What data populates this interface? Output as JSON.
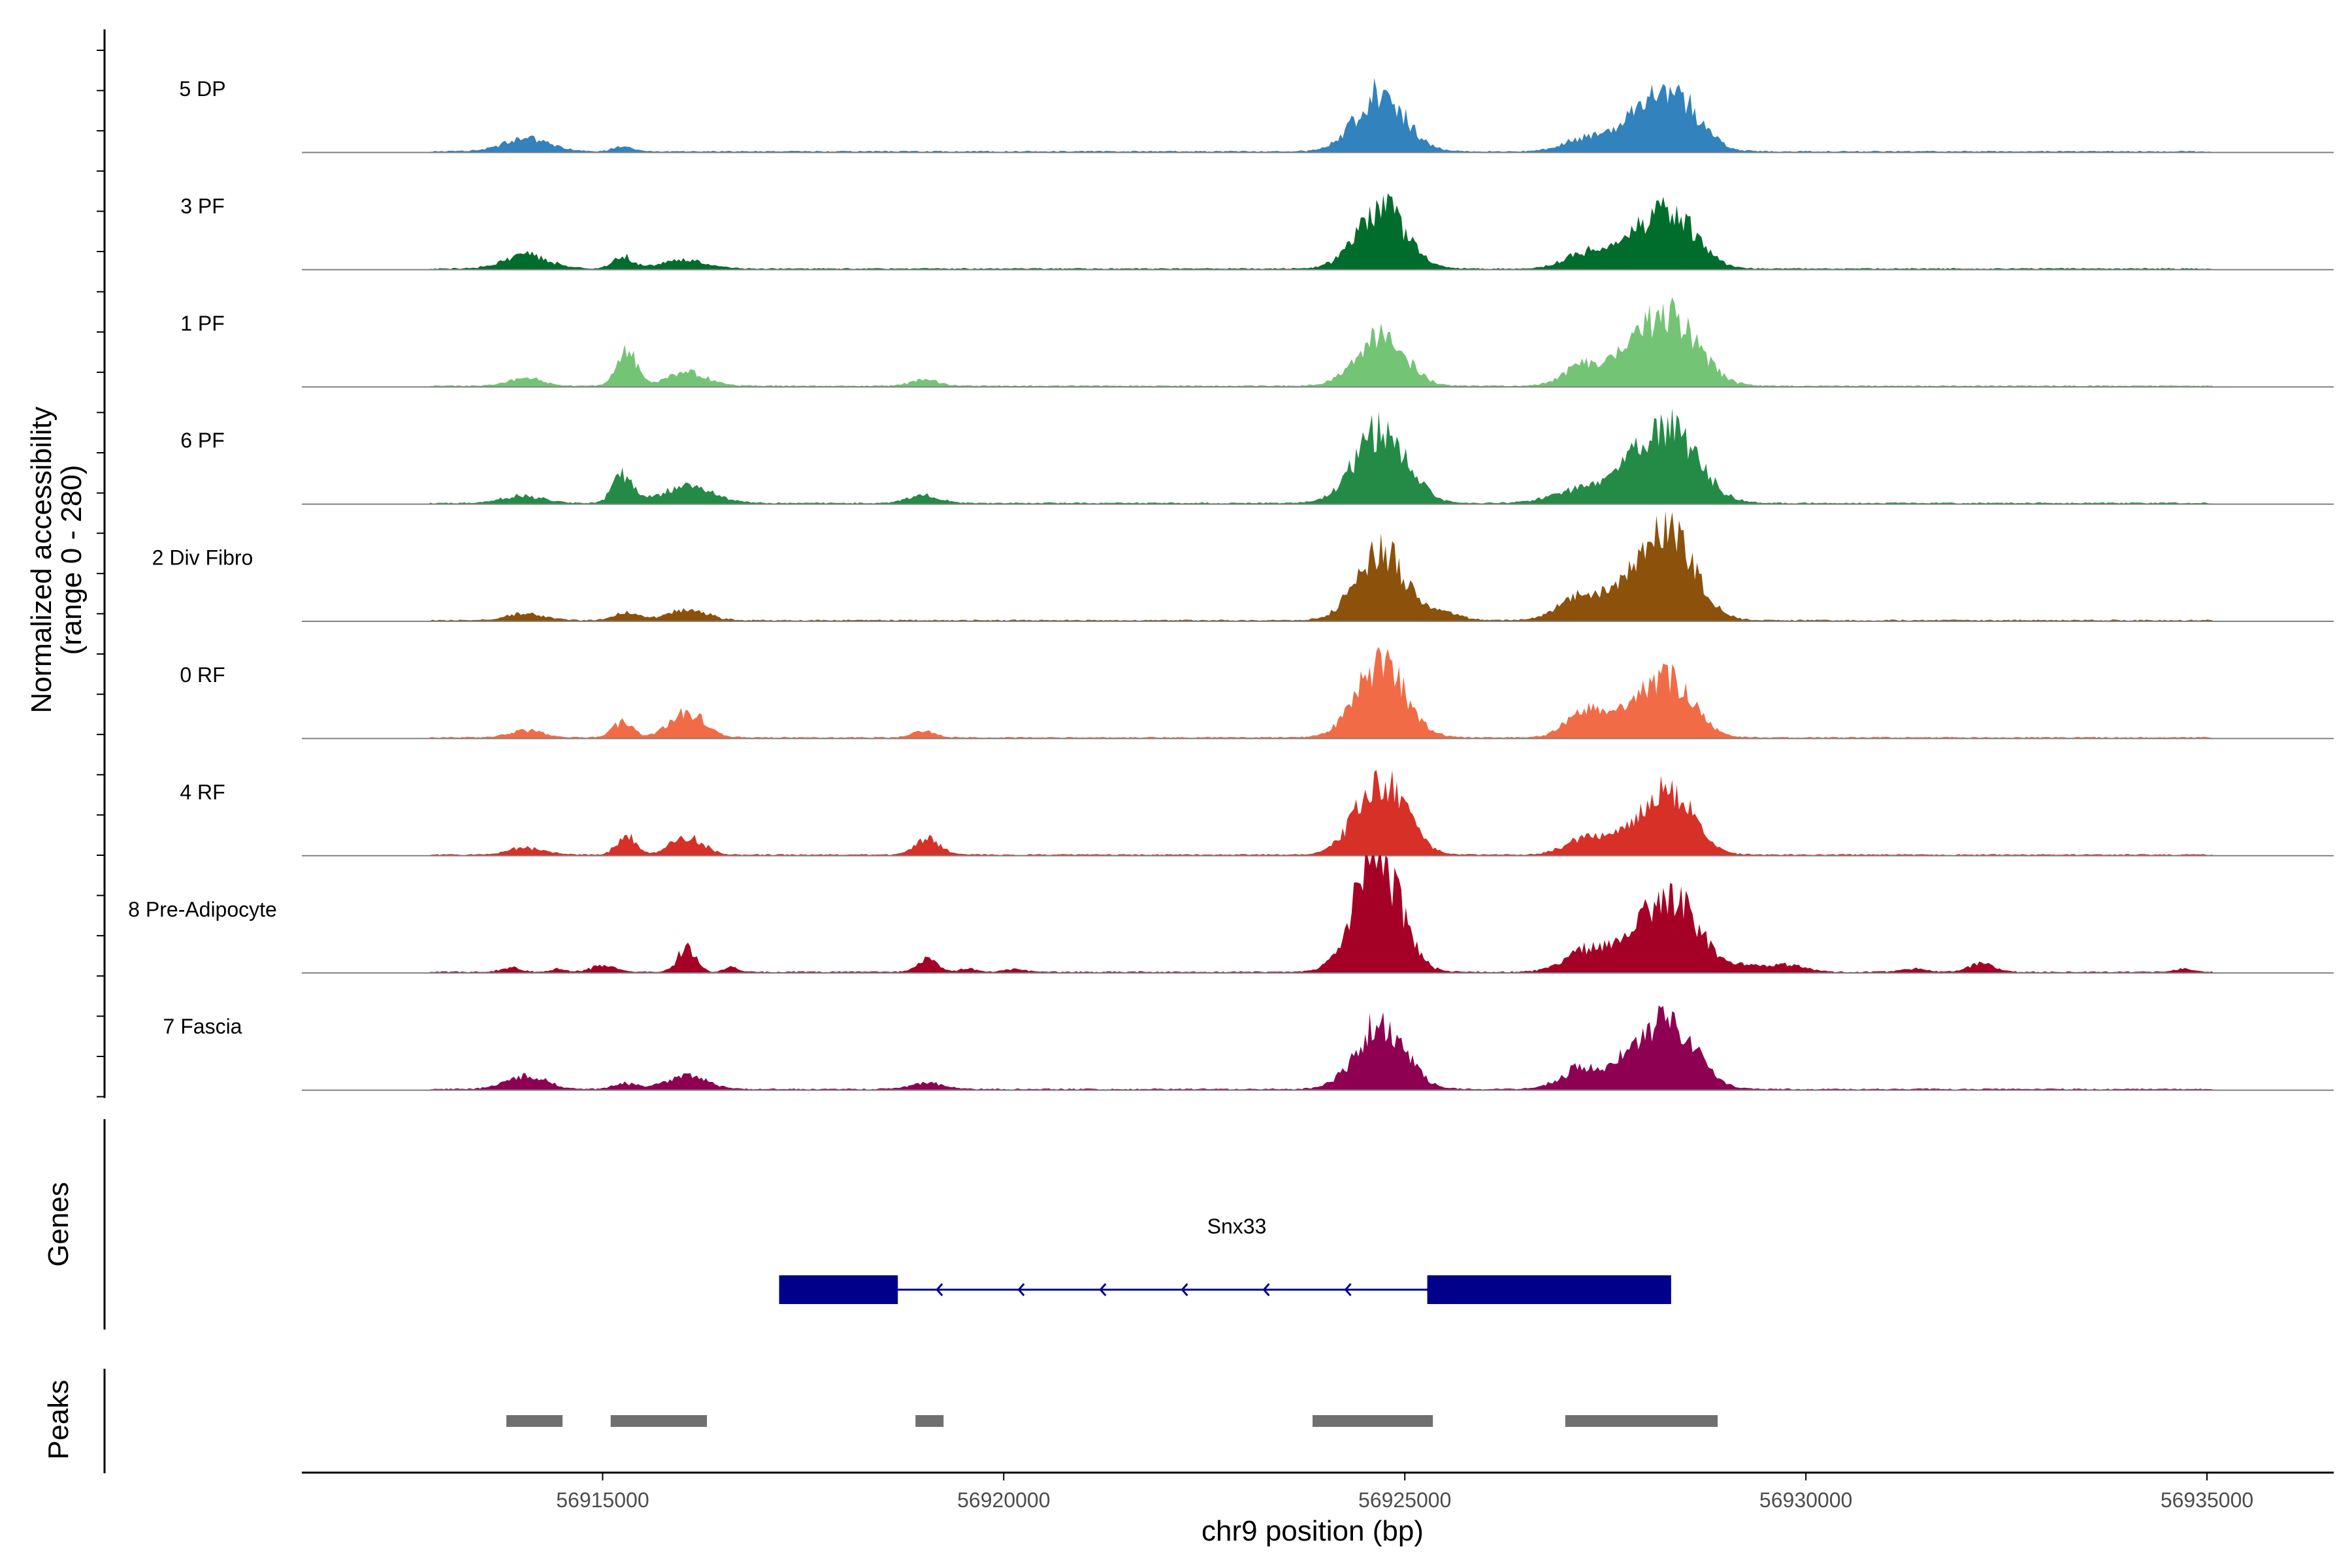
{
  "chart_data": {
    "type": "area",
    "title": "",
    "xlabel": "chr9 position (bp)",
    "ylabel": "Normalized accessibility\n(range 0 - 280)",
    "ylim": [
      0,
      280
    ],
    "xlim": [
      56911250,
      56936580
    ],
    "x_ticks": [
      56915000,
      56920000,
      56925000,
      56930000,
      56935000
    ],
    "x_tick_labels": [
      "56915000",
      "56920000",
      "56925000",
      "56930000",
      "56935000"
    ],
    "tracks": [
      {
        "name": "5 DP",
        "color": "#3182BD",
        "peaks": [
          [
            56914050,
            45,
            280
          ],
          [
            56915250,
            18,
            120
          ],
          [
            56924700,
            200,
            300
          ],
          [
            56927300,
            50,
            280
          ],
          [
            56927850,
            45,
            220
          ],
          [
            56928300,
            210,
            330
          ]
        ]
      },
      {
        "name": "3 PF",
        "color": "#006D2C",
        "peaks": [
          [
            56914050,
            45,
            280
          ],
          [
            56915250,
            40,
            120
          ],
          [
            56916000,
            30,
            280
          ],
          [
            56924700,
            210,
            300
          ],
          [
            56927300,
            60,
            280
          ],
          [
            56927800,
            45,
            200
          ],
          [
            56928300,
            200,
            320
          ]
        ]
      },
      {
        "name": "1 PF",
        "color": "#74C476",
        "peaks": [
          [
            56914050,
            25,
            220
          ],
          [
            56915300,
            120,
            120
          ],
          [
            56916050,
            45,
            250
          ],
          [
            56919020,
            20,
            180
          ],
          [
            56924700,
            170,
            300
          ],
          [
            56927250,
            70,
            250
          ],
          [
            56927800,
            60,
            250
          ],
          [
            56928300,
            230,
            350
          ]
        ]
      },
      {
        "name": "6 PF",
        "color": "#238B45",
        "peaks": [
          [
            56914000,
            25,
            250
          ],
          [
            56915250,
            95,
            120
          ],
          [
            56916050,
            55,
            320
          ],
          [
            56919000,
            25,
            200
          ],
          [
            56924700,
            250,
            320
          ],
          [
            56927200,
            45,
            350
          ],
          [
            56927800,
            60,
            300
          ],
          [
            56928300,
            250,
            350
          ]
        ]
      },
      {
        "name": "2 Div Fibro",
        "color": "#8C510A",
        "peaks": [
          [
            56914050,
            25,
            220
          ],
          [
            56915300,
            25,
            150
          ],
          [
            56916050,
            35,
            250
          ],
          [
            56924700,
            240,
            300
          ],
          [
            56925500,
            25,
            200
          ],
          [
            56927200,
            80,
            280
          ],
          [
            56927800,
            75,
            280
          ],
          [
            56928300,
            290,
            320
          ]
        ]
      },
      {
        "name": "0 RF",
        "color": "#F16C46",
        "peaks": [
          [
            56914050,
            25,
            200
          ],
          [
            56915250,
            55,
            120
          ],
          [
            56916050,
            85,
            220
          ],
          [
            56919000,
            20,
            150
          ],
          [
            56924700,
            250,
            300
          ],
          [
            56927250,
            100,
            230
          ],
          [
            56927800,
            70,
            250
          ],
          [
            56928300,
            200,
            300
          ]
        ]
      },
      {
        "name": "4 RF",
        "color": "#D73027",
        "peaks": [
          [
            56914050,
            25,
            220
          ],
          [
            56915300,
            65,
            120
          ],
          [
            56916050,
            60,
            200
          ],
          [
            56919050,
            55,
            150
          ],
          [
            56924700,
            260,
            300
          ],
          [
            56927250,
            55,
            250
          ],
          [
            56927800,
            55,
            250
          ],
          [
            56928300,
            210,
            300
          ]
        ]
      },
      {
        "name": "8 Pre-Adipocyte",
        "color": "#A50026",
        "peaks": [
          [
            56913850,
            15,
            120
          ],
          [
            56914450,
            12,
            80
          ],
          [
            56915000,
            20,
            150
          ],
          [
            56916050,
            85,
            110
          ],
          [
            56916600,
            15,
            80
          ],
          [
            56919050,
            45,
            120
          ],
          [
            56919550,
            12,
            100
          ],
          [
            56920150,
            10,
            120
          ],
          [
            56924650,
            400,
            280
          ],
          [
            56927350,
            85,
            300
          ],
          [
            56927900,
            60,
            200
          ],
          [
            56928350,
            250,
            320
          ],
          [
            56929300,
            20,
            200
          ],
          [
            56929800,
            25,
            200
          ],
          [
            56931350,
            10,
            150
          ],
          [
            56932200,
            30,
            150
          ],
          [
            56934700,
            12,
            100
          ]
        ]
      },
      {
        "name": "7 Fascia",
        "color": "#8E0152",
        "peaks": [
          [
            56914050,
            45,
            250
          ],
          [
            56915300,
            20,
            150
          ],
          [
            56916050,
            45,
            250
          ],
          [
            56919050,
            20,
            200
          ],
          [
            56924700,
            220,
            300
          ],
          [
            56927200,
            70,
            250
          ],
          [
            56927800,
            70,
            250
          ],
          [
            56928300,
            230,
            320
          ]
        ]
      }
    ],
    "genes": [
      {
        "name": "Snx33",
        "strand": "-",
        "start": 56917200,
        "end": 56928320,
        "exons": [
          [
            56917200,
            56918680
          ],
          [
            56925280,
            56928320
          ]
        ],
        "color": "#00008B"
      }
    ],
    "peak_regions": [
      [
        56913800,
        56914500
      ],
      [
        56915100,
        56916300
      ],
      [
        56918900,
        56919250
      ],
      [
        56923850,
        56925350
      ],
      [
        56927000,
        56928900
      ]
    ],
    "panel_labels": {
      "genes": "Genes",
      "peaks": "Peaks"
    },
    "baseline_color": "#808080",
    "peak_region_color": "#707070"
  }
}
